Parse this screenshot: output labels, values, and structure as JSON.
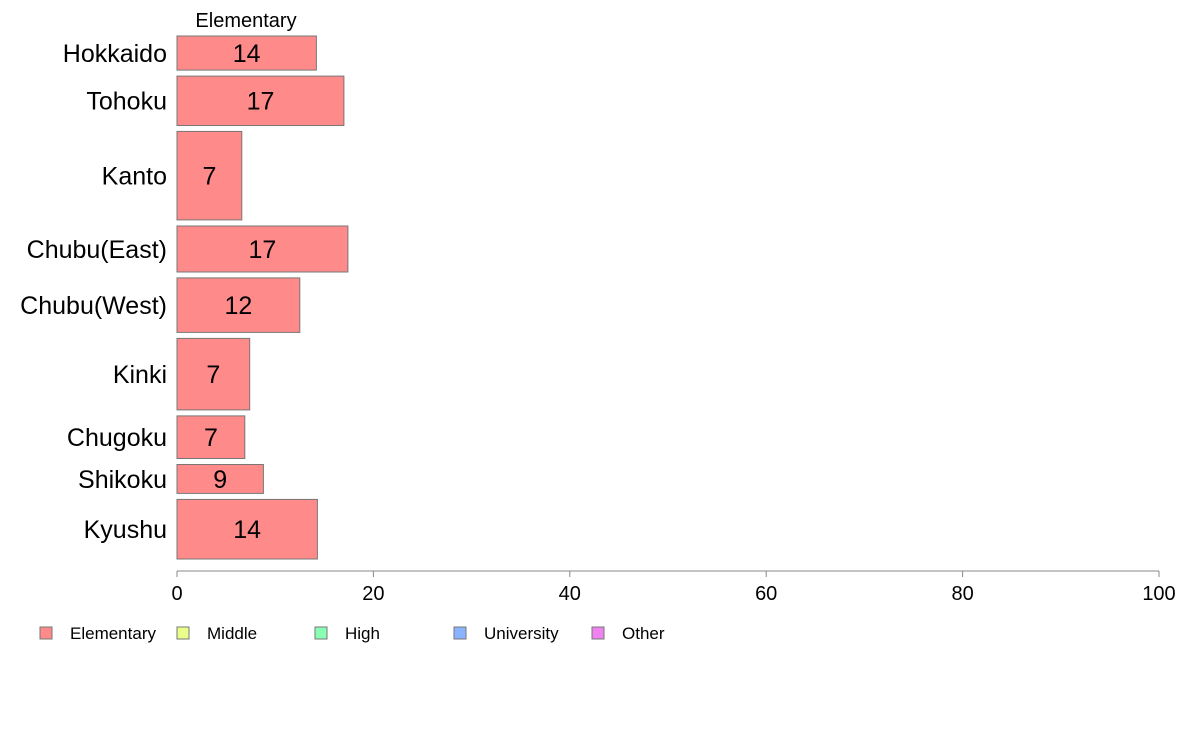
{
  "chart_data": {
    "type": "bar",
    "orientation": "horizontal",
    "column_title": "Elementary",
    "categories": [
      "Hokkaido",
      "Tohoku",
      "Kanto",
      "Chubu(East)",
      "Chubu(West)",
      "Kinki",
      "Chugoku",
      "Shikoku",
      "Kyushu"
    ],
    "series": [
      {
        "name": "Elementary",
        "color": "#ff8a8a",
        "values": [
          14,
          17,
          7,
          17,
          12,
          7,
          7,
          9,
          14
        ],
        "bar_extent": [
          14.2,
          17.0,
          6.6,
          17.4,
          12.5,
          7.4,
          6.9,
          8.8,
          14.3
        ]
      }
    ],
    "category_weights": [
      1,
      1.45,
      2.6,
      1.35,
      1.6,
      2.1,
      1.25,
      0.85,
      1.75
    ],
    "xlim": [
      0,
      100
    ],
    "xticks": [
      "0",
      "20",
      "40",
      "60",
      "80",
      "100"
    ],
    "grid": false,
    "legend_position": "bottom-left",
    "legend": [
      {
        "label": "Elementary",
        "color": "#ff8a8a"
      },
      {
        "label": "Middle",
        "color": "#eaff8a"
      },
      {
        "label": "High",
        "color": "#8affb4"
      },
      {
        "label": "University",
        "color": "#8ab4ff"
      },
      {
        "label": "Other",
        "color": "#ee82ee"
      }
    ],
    "title": "",
    "xlabel": "",
    "ylabel": ""
  }
}
